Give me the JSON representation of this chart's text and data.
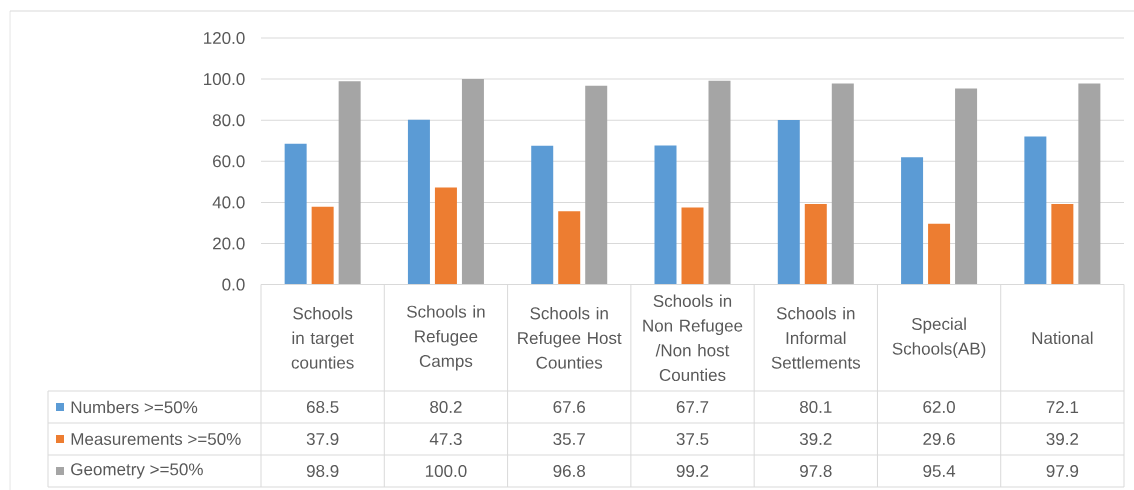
{
  "chart_data": {
    "type": "bar",
    "categories": [
      "Schools in target counties",
      "Schools in Refugee Camps",
      "Schools in Refugee Host Counties",
      "Schools in Non Refugee /Non host Counties",
      "Schools in Informal Settlements",
      "Special Schools(AB)",
      "National"
    ],
    "series": [
      {
        "name": "Numbers >=50%",
        "color": "#5b9bd5",
        "values": [
          68.5,
          80.2,
          67.6,
          67.7,
          80.1,
          62.0,
          72.1
        ],
        "value_labels": [
          "68.5",
          "80.2",
          "67.6",
          "67.7",
          "80.1",
          "62.0",
          "72.1"
        ]
      },
      {
        "name": "Measurements >=50%",
        "color": "#ed7d31",
        "values": [
          37.9,
          47.3,
          35.7,
          37.5,
          39.2,
          29.6,
          39.2
        ],
        "value_labels": [
          "37.9",
          "47.3",
          "35.7",
          "37.5",
          "39.2",
          "29.6",
          "39.2"
        ]
      },
      {
        "name": "Geometry >=50%",
        "color": "#a5a5a5",
        "values": [
          98.9,
          100.0,
          96.8,
          99.2,
          97.8,
          95.4,
          97.9
        ],
        "value_labels": [
          "98.9",
          "100.0",
          "96.8",
          "99.2",
          "97.8",
          "95.4",
          "97.9"
        ]
      }
    ],
    "ylim": [
      0,
      120
    ],
    "yticks": [
      {
        "value": 0,
        "label": "0.0"
      },
      {
        "value": 20,
        "label": "20.0"
      },
      {
        "value": 40,
        "label": "40.0"
      },
      {
        "value": 60,
        "label": "60.0"
      },
      {
        "value": 80,
        "label": "80.0"
      },
      {
        "value": 100,
        "label": "100.0"
      },
      {
        "value": 120,
        "label": "120.0"
      }
    ],
    "grid": "y",
    "legend": "bottom left"
  }
}
